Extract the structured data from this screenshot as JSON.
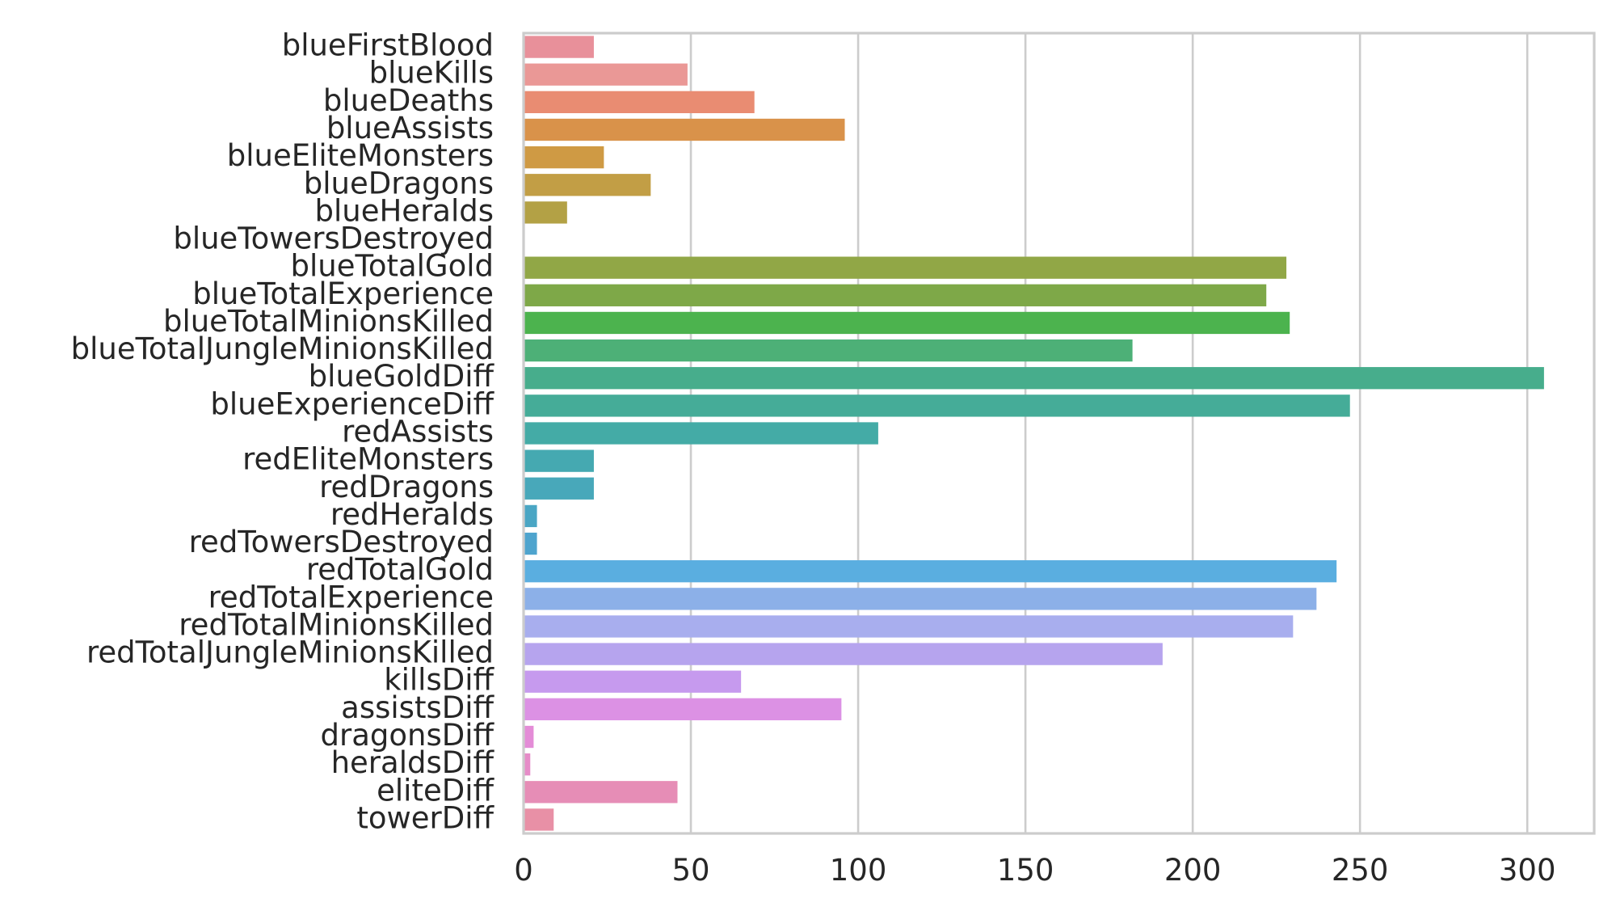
{
  "chart_data": {
    "type": "bar",
    "orientation": "horizontal",
    "categories": [
      "blueFirstBlood",
      "blueKills",
      "blueDeaths",
      "blueAssists",
      "blueEliteMonsters",
      "blueDragons",
      "blueHeralds",
      "blueTowersDestroyed",
      "blueTotalGold",
      "blueTotalExperience",
      "blueTotalMinionsKilled",
      "blueTotalJungleMinionsKilled",
      "blueGoldDiff",
      "blueExperienceDiff",
      "redAssists",
      "redEliteMonsters",
      "redDragons",
      "redHeralds",
      "redTowersDestroyed",
      "redTotalGold",
      "redTotalExperience",
      "redTotalMinionsKilled",
      "redTotalJungleMinionsKilled",
      "killsDiff",
      "assistsDiff",
      "dragonsDiff",
      "heraldsDiff",
      "eliteDiff",
      "towerDiff"
    ],
    "values": [
      21,
      49,
      69,
      96,
      24,
      38,
      13,
      0,
      228,
      222,
      229,
      182,
      305,
      247,
      106,
      21,
      21,
      4,
      4,
      243,
      237,
      230,
      191,
      65,
      95,
      3,
      2,
      46,
      9
    ],
    "colors": [
      "#e8909a",
      "#ea9896",
      "#e98c72",
      "#d9924a",
      "#cf9a44",
      "#c29e45",
      "#b3a145",
      "#a6a446",
      "#91a746",
      "#7ea848",
      "#4cb34e",
      "#4db077",
      "#47ad8c",
      "#45ac98",
      "#44aba6",
      "#45a9b1",
      "#48a8ba",
      "#4aa6c4",
      "#4ea4ce",
      "#5aaee0",
      "#8cb0e8",
      "#a8aeee",
      "#b6a4ee",
      "#c69aee",
      "#dc91e4",
      "#e48cd7",
      "#e68cc8",
      "#e68db6",
      "#e890a6"
    ],
    "xlim": [
      0,
      320
    ],
    "xticks": [
      "0",
      "50",
      "100",
      "150",
      "200",
      "250",
      "300"
    ],
    "xtick_values": [
      0,
      50,
      100,
      150,
      200,
      250,
      300
    ],
    "grid": "vertical",
    "title": "",
    "xlabel": "",
    "ylabel": ""
  }
}
